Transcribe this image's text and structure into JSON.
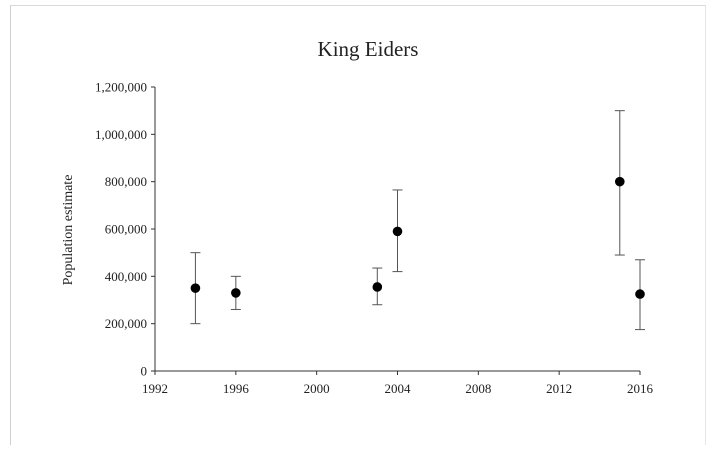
{
  "chart_data": {
    "type": "scatter",
    "title": "King Eiders",
    "xlabel": "",
    "ylabel": "Population estimate",
    "xlim": [
      1992,
      2016
    ],
    "ylim": [
      0,
      1200000
    ],
    "x_ticks": [
      {
        "value": 1992,
        "label": "1992"
      },
      {
        "value": 1996,
        "label": "1996"
      },
      {
        "value": 2000,
        "label": "2000"
      },
      {
        "value": 2004,
        "label": "2004"
      },
      {
        "value": 2008,
        "label": "2008"
      },
      {
        "value": 2012,
        "label": "2012"
      },
      {
        "value": 2016,
        "label": "2016"
      }
    ],
    "y_ticks": [
      {
        "value": 0,
        "label": "0"
      },
      {
        "value": 200000,
        "label": "200,000"
      },
      {
        "value": 400000,
        "label": "400,000"
      },
      {
        "value": 600000,
        "label": "600,000"
      },
      {
        "value": 800000,
        "label": "800,000"
      },
      {
        "value": 1000000,
        "label": "1,000,000"
      },
      {
        "value": 1200000,
        "label": "1,200,000"
      }
    ],
    "grid": false,
    "legend": "none",
    "points": [
      {
        "x": 1994,
        "y": 350000,
        "low": 200000,
        "high": 500000
      },
      {
        "x": 1996,
        "y": 330000,
        "low": 260000,
        "high": 400000
      },
      {
        "x": 2003,
        "y": 355000,
        "low": 280000,
        "high": 435000
      },
      {
        "x": 2004,
        "y": 590000,
        "low": 420000,
        "high": 765000
      },
      {
        "x": 2015,
        "y": 800000,
        "low": 490000,
        "high": 1100000
      },
      {
        "x": 2016,
        "y": 325000,
        "low": 175000,
        "high": 470000
      }
    ],
    "colors": {
      "marker": "#000000",
      "error_bar": "#555555",
      "axis": "#333333",
      "text": "#222222"
    }
  }
}
